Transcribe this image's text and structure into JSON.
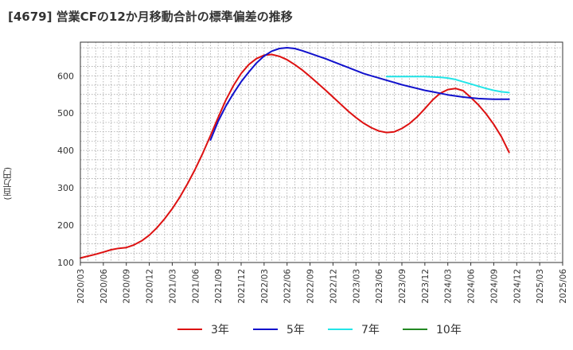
{
  "title": "[4679]  営業CFの12か月移動合計の標準偏差の推移",
  "chart_data": {
    "type": "line",
    "ylabel": "(百万円)",
    "ylim": [
      100,
      690
    ],
    "yticks": [
      100,
      200,
      300,
      400,
      500,
      600
    ],
    "x_start": "2020-03",
    "x_end": "2025-06",
    "xticks": [
      "2020/03",
      "2020/06",
      "2020/09",
      "2020/12",
      "2021/03",
      "2021/06",
      "2021/09",
      "2021/12",
      "2022/03",
      "2022/06",
      "2022/09",
      "2022/12",
      "2023/03",
      "2023/06",
      "2023/09",
      "2023/12",
      "2024/03",
      "2024/06",
      "2024/09",
      "2024/12",
      "2025/03",
      "2025/06"
    ],
    "grid": true,
    "legend_position": "bottom",
    "series": [
      {
        "name": "3年",
        "color": "#dd1111",
        "points": [
          [
            "2020-03",
            112
          ],
          [
            "2020-04",
            117
          ],
          [
            "2020-05",
            122
          ],
          [
            "2020-06",
            128
          ],
          [
            "2020-07",
            134
          ],
          [
            "2020-08",
            138
          ],
          [
            "2020-09",
            140
          ],
          [
            "2020-10",
            147
          ],
          [
            "2020-11",
            158
          ],
          [
            "2020-12",
            173
          ],
          [
            "2021-01",
            193
          ],
          [
            "2021-02",
            217
          ],
          [
            "2021-03",
            244
          ],
          [
            "2021-04",
            275
          ],
          [
            "2021-05",
            311
          ],
          [
            "2021-06",
            350
          ],
          [
            "2021-07",
            393
          ],
          [
            "2021-08",
            440
          ],
          [
            "2021-09",
            488
          ],
          [
            "2021-10",
            535
          ],
          [
            "2021-11",
            574
          ],
          [
            "2021-12",
            606
          ],
          [
            "2022-01",
            630
          ],
          [
            "2022-02",
            646
          ],
          [
            "2022-03",
            655
          ],
          [
            "2022-04",
            657
          ],
          [
            "2022-05",
            652
          ],
          [
            "2022-06",
            643
          ],
          [
            "2022-07",
            630
          ],
          [
            "2022-08",
            615
          ],
          [
            "2022-09",
            598
          ],
          [
            "2022-10",
            580
          ],
          [
            "2022-11",
            562
          ],
          [
            "2022-12",
            543
          ],
          [
            "2023-01",
            524
          ],
          [
            "2023-02",
            505
          ],
          [
            "2023-03",
            488
          ],
          [
            "2023-04",
            473
          ],
          [
            "2023-05",
            461
          ],
          [
            "2023-06",
            452
          ],
          [
            "2023-07",
            448
          ],
          [
            "2023-08",
            450
          ],
          [
            "2023-09",
            459
          ],
          [
            "2023-10",
            472
          ],
          [
            "2023-11",
            490
          ],
          [
            "2023-12",
            512
          ],
          [
            "2024-01",
            535
          ],
          [
            "2024-02",
            553
          ],
          [
            "2024-03",
            563
          ],
          [
            "2024-04",
            566
          ],
          [
            "2024-05",
            560
          ],
          [
            "2024-06",
            542
          ],
          [
            "2024-07",
            522
          ],
          [
            "2024-08",
            498
          ],
          [
            "2024-09",
            470
          ],
          [
            "2024-10",
            437
          ],
          [
            "2024-11",
            395
          ]
        ]
      },
      {
        "name": "5年",
        "color": "#1111cc",
        "points": [
          [
            "2021-08",
            428
          ],
          [
            "2021-09",
            478
          ],
          [
            "2021-10",
            519
          ],
          [
            "2021-11",
            553
          ],
          [
            "2021-12",
            584
          ],
          [
            "2022-01",
            610
          ],
          [
            "2022-02",
            634
          ],
          [
            "2022-03",
            653
          ],
          [
            "2022-04",
            666
          ],
          [
            "2022-05",
            673
          ],
          [
            "2022-06",
            675
          ],
          [
            "2022-07",
            673
          ],
          [
            "2022-08",
            667
          ],
          [
            "2022-09",
            660
          ],
          [
            "2022-10",
            653
          ],
          [
            "2022-11",
            646
          ],
          [
            "2022-12",
            638
          ],
          [
            "2023-01",
            630
          ],
          [
            "2023-02",
            622
          ],
          [
            "2023-03",
            614
          ],
          [
            "2023-04",
            606
          ],
          [
            "2023-05",
            600
          ],
          [
            "2023-06",
            594
          ],
          [
            "2023-07",
            588
          ],
          [
            "2023-08",
            582
          ],
          [
            "2023-09",
            576
          ],
          [
            "2023-10",
            571
          ],
          [
            "2023-11",
            566
          ],
          [
            "2023-12",
            561
          ],
          [
            "2024-01",
            557
          ],
          [
            "2024-02",
            553
          ],
          [
            "2024-03",
            549
          ],
          [
            "2024-04",
            546
          ],
          [
            "2024-05",
            543
          ],
          [
            "2024-06",
            541
          ],
          [
            "2024-07",
            539
          ],
          [
            "2024-08",
            538
          ],
          [
            "2024-09",
            537
          ],
          [
            "2024-10",
            537
          ],
          [
            "2024-11",
            537
          ]
        ]
      },
      {
        "name": "7年",
        "color": "#22e5e8",
        "points": [
          [
            "2023-07",
            598
          ],
          [
            "2023-08",
            598
          ],
          [
            "2023-09",
            598
          ],
          [
            "2023-10",
            598
          ],
          [
            "2023-11",
            598
          ],
          [
            "2023-12",
            598
          ],
          [
            "2024-01",
            597
          ],
          [
            "2024-02",
            596
          ],
          [
            "2024-03",
            594
          ],
          [
            "2024-04",
            590
          ],
          [
            "2024-05",
            584
          ],
          [
            "2024-06",
            578
          ],
          [
            "2024-07",
            572
          ],
          [
            "2024-08",
            566
          ],
          [
            "2024-09",
            561
          ],
          [
            "2024-10",
            557
          ],
          [
            "2024-11",
            555
          ]
        ]
      },
      {
        "name": "10年",
        "color": "#228822",
        "points": []
      }
    ]
  }
}
